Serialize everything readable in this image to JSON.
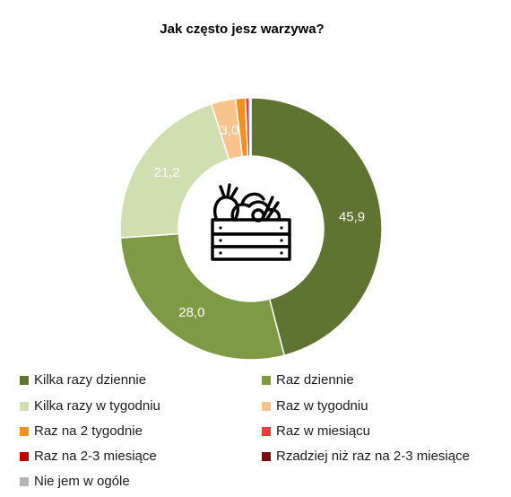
{
  "chart_data": {
    "type": "pie",
    "title": "Jak często jesz warzywa?",
    "categories": [
      "Kilka razy dziennie",
      "Raz dziennie",
      "Kilka razy w tygodniu",
      "Raz w tygodniu",
      "Raz na 2 tygodnie",
      "Raz w miesiącu",
      "Raz na 2-3 miesiące",
      "Rzadziej niż raz na 2-3 miesiące",
      "Nie jem w ogóle"
    ],
    "values": [
      45.9,
      28.0,
      21.2,
      3.0,
      1.2,
      0.5,
      0.1,
      0.05,
      0.05
    ],
    "data_labels": [
      "45,9",
      "28,0",
      "21,2",
      "3,0",
      "",
      "",
      "",
      "",
      ""
    ],
    "colors": [
      "#5e7430",
      "#7f9a45",
      "#d0deb0",
      "#f8c38c",
      "#f0901f",
      "#ef3b3b",
      "#c00000",
      "#7a0c0c",
      "#b4b4b4"
    ],
    "legend_placement": "bottom",
    "donut": true,
    "center_icon": "vegetable-crate-icon"
  }
}
